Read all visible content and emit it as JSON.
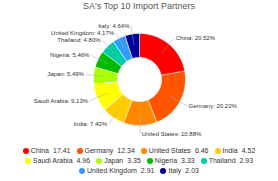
{
  "chart_data": {
    "type": "pie",
    "title": "SA's Top 10 Import Partners",
    "categories": [
      "China",
      "Germany",
      "United States",
      "India",
      "Saudi Arabia",
      "Japan",
      "Nigeria",
      "Thailand",
      "United Kingdom",
      "Italy"
    ],
    "values": [
      20.52,
      20.22,
      10.88,
      7.4,
      9.13,
      5.49,
      5.46,
      4.8,
      4.17,
      4.64
    ],
    "value_labels": [
      "China: 20.52%",
      "Germany: 20.22%",
      "United States: 10.88%",
      "India: 7.40%",
      "Saudi Arabia: 9.13%",
      "Japan: 5.49%",
      "Nigeria: 5.46%",
      "Thailand: 4.80%",
      "United Kingdom: 4.17%",
      "Italy: 4.64%"
    ],
    "data_labels": true,
    "colors": [
      "#FF0000",
      "#FF5500",
      "#FF8800",
      "#FFCC00",
      "#FFFF00",
      "#AAFF00",
      "#00BB00",
      "#00CCAA",
      "#3399FF",
      "#000099"
    ],
    "legend": "bottom",
    "legend_values": [
      17.41,
      12.34,
      6.46,
      4.52,
      4.96,
      3.35,
      3.33,
      2.93,
      2.91,
      2.03
    ]
  }
}
